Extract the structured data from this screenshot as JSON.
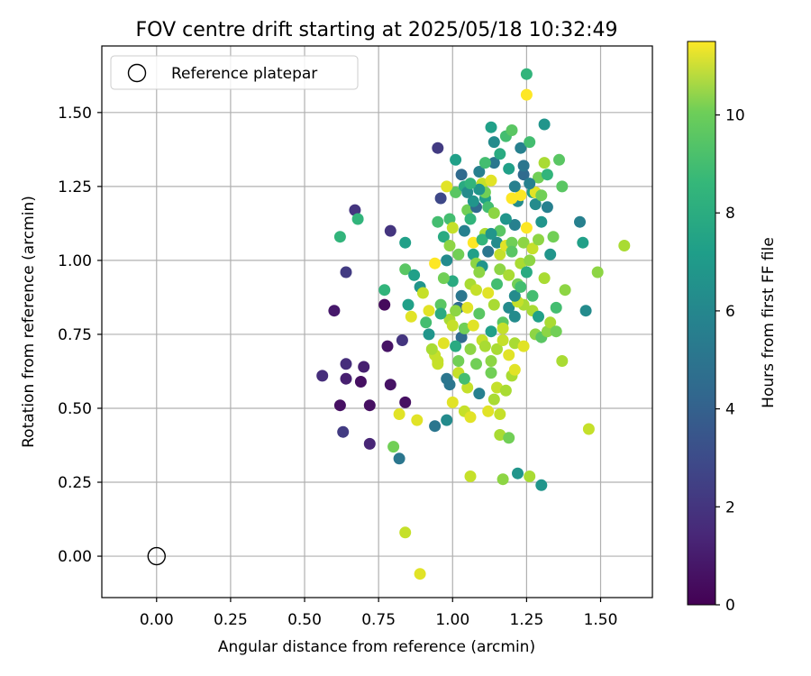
{
  "chart_data": {
    "type": "scatter",
    "title": "FOV centre drift starting at 2025/05/18 10:32:49",
    "xlabel": "Angular distance from reference (arcmin)",
    "ylabel": "Rotation from reference (arcmin)",
    "xlim": [
      -0.185,
      1.675
    ],
    "ylim": [
      -0.14,
      1.725
    ],
    "xticks": [
      0.0,
      0.25,
      0.5,
      0.75,
      1.0,
      1.25,
      1.5
    ],
    "xtick_labels": [
      "0.00",
      "0.25",
      "0.50",
      "0.75",
      "1.00",
      "1.25",
      "1.50"
    ],
    "yticks": [
      0.0,
      0.25,
      0.5,
      0.75,
      1.0,
      1.25,
      1.5
    ],
    "ytick_labels": [
      "0.00",
      "0.25",
      "0.50",
      "0.75",
      "1.00",
      "1.25",
      "1.50"
    ],
    "grid": true,
    "legend": {
      "placement": "top-left",
      "entries": [
        "Reference platepar"
      ]
    },
    "reference_point": {
      "x": 0.0,
      "y": 0.0,
      "label": "Reference platepar"
    },
    "colorbar": {
      "label": "Hours from first FF file",
      "colormap": "viridis",
      "range": [
        0,
        11.5
      ],
      "ticks": [
        0,
        2,
        4,
        6,
        8,
        10
      ],
      "tick_labels": [
        "0",
        "2",
        "4",
        "6",
        "8",
        "10"
      ]
    },
    "points": [
      [
        0.56,
        0.61,
        1.5
      ],
      [
        0.62,
        0.51,
        0.5
      ],
      [
        0.64,
        0.6,
        1.0
      ],
      [
        0.69,
        0.59,
        0.5
      ],
      [
        0.7,
        0.64,
        1.0
      ],
      [
        0.72,
        0.51,
        0.5
      ],
      [
        0.77,
        0.85,
        0.3
      ],
      [
        0.78,
        0.71,
        0.6
      ],
      [
        0.79,
        0.58,
        0.6
      ],
      [
        0.84,
        0.52,
        0.5
      ],
      [
        0.6,
        0.83,
        0.8
      ],
      [
        0.63,
        0.42,
        2.0
      ],
      [
        0.72,
        0.38,
        1.2
      ],
      [
        0.64,
        0.65,
        1.5
      ],
      [
        0.64,
        0.96,
        2.0
      ],
      [
        0.67,
        1.17,
        1.8
      ],
      [
        0.79,
        1.1,
        1.8
      ],
      [
        0.83,
        0.73,
        1.8
      ],
      [
        0.95,
        1.38,
        2.0
      ],
      [
        0.96,
        1.21,
        2.5
      ],
      [
        0.62,
        1.08,
        7.5
      ],
      [
        0.68,
        1.14,
        7.5
      ],
      [
        0.77,
        0.9,
        7.5
      ],
      [
        0.84,
        1.06,
        6.5
      ],
      [
        0.85,
        0.85,
        6.5
      ],
      [
        0.84,
        0.97,
        8.5
      ],
      [
        0.86,
        0.81,
        11.0
      ],
      [
        0.87,
        0.95,
        6.5
      ],
      [
        0.89,
        0.91,
        6.0
      ],
      [
        0.92,
        0.75,
        6.0
      ],
      [
        0.94,
        0.68,
        10.5
      ],
      [
        0.95,
        0.66,
        10.5
      ],
      [
        0.96,
        0.85,
        8.5
      ],
      [
        0.95,
        1.13,
        8.0
      ],
      [
        0.97,
        1.08,
        7.0
      ],
      [
        0.98,
        1.0,
        5.5
      ],
      [
        0.99,
        1.05,
        9.5
      ],
      [
        1.0,
        0.93,
        7.0
      ],
      [
        1.01,
        1.23,
        8.5
      ],
      [
        1.02,
        0.84,
        4.0
      ],
      [
        1.03,
        0.74,
        4.0
      ],
      [
        1.04,
        1.25,
        7.0
      ],
      [
        1.05,
        1.17,
        9.0
      ],
      [
        1.06,
        1.14,
        7.5
      ],
      [
        1.07,
        1.02,
        6.5
      ],
      [
        1.08,
        0.99,
        9.5
      ],
      [
        1.09,
        1.3,
        5.0
      ],
      [
        1.1,
        0.98,
        6.0
      ],
      [
        1.11,
        1.21,
        6.5
      ],
      [
        1.12,
        1.03,
        4.5
      ],
      [
        1.13,
        1.45,
        6.5
      ],
      [
        1.14,
        1.33,
        4.5
      ],
      [
        1.15,
        1.06,
        5.5
      ],
      [
        1.16,
        1.02,
        10.5
      ],
      [
        1.17,
        0.79,
        8.5
      ],
      [
        1.18,
        1.42,
        8.0
      ],
      [
        1.19,
        0.84,
        5.5
      ],
      [
        1.2,
        1.44,
        8.5
      ],
      [
        1.21,
        1.12,
        5.0
      ],
      [
        1.22,
        1.2,
        5.5
      ],
      [
        1.23,
        1.38,
        5.0
      ],
      [
        1.24,
        1.29,
        4.0
      ],
      [
        1.25,
        1.63,
        7.5
      ],
      [
        1.25,
        1.56,
        11.5
      ],
      [
        1.26,
        1.4,
        8.0
      ],
      [
        1.27,
        1.23,
        6.5
      ],
      [
        1.28,
        1.19,
        5.5
      ],
      [
        1.29,
        1.28,
        9.0
      ],
      [
        1.3,
        1.13,
        6.0
      ],
      [
        1.31,
        1.46,
        6.0
      ],
      [
        1.32,
        1.18,
        5.0
      ],
      [
        1.33,
        1.02,
        6.0
      ],
      [
        1.34,
        1.08,
        9.0
      ],
      [
        1.35,
        0.84,
        8.0
      ],
      [
        1.36,
        1.34,
        8.5
      ],
      [
        1.37,
        1.25,
        8.5
      ],
      [
        1.38,
        0.9,
        9.5
      ],
      [
        1.37,
        0.66,
        10.0
      ],
      [
        1.43,
        1.13,
        5.0
      ],
      [
        1.44,
        1.06,
        6.5
      ],
      [
        1.45,
        0.83,
        5.5
      ],
      [
        1.46,
        0.43,
        10.5
      ],
      [
        1.49,
        0.96,
        9.5
      ],
      [
        1.58,
        1.05,
        10.0
      ],
      [
        0.82,
        0.33,
        4.5
      ],
      [
        0.82,
        0.48,
        11.0
      ],
      [
        0.88,
        0.46,
        11.0
      ],
      [
        0.84,
        0.08,
        10.5
      ],
      [
        0.89,
        -0.06,
        11.0
      ],
      [
        0.8,
        0.37,
        9.0
      ],
      [
        0.94,
        0.44,
        4.5
      ],
      [
        0.98,
        0.46,
        5.5
      ],
      [
        0.98,
        0.6,
        4.5
      ],
      [
        1.0,
        0.52,
        11.0
      ],
      [
        1.02,
        0.62,
        10.5
      ],
      [
        1.04,
        0.49,
        10.5
      ],
      [
        1.05,
        0.57,
        10.5
      ],
      [
        1.06,
        0.47,
        11.0
      ],
      [
        1.06,
        0.27,
        10.5
      ],
      [
        1.08,
        0.65,
        9.0
      ],
      [
        1.09,
        0.55,
        5.0
      ],
      [
        1.12,
        0.49,
        11.0
      ],
      [
        1.13,
        0.62,
        9.0
      ],
      [
        1.14,
        0.53,
        10.0
      ],
      [
        1.15,
        0.57,
        10.5
      ],
      [
        1.16,
        0.48,
        10.5
      ],
      [
        1.16,
        0.41,
        10.0
      ],
      [
        1.17,
        0.26,
        9.5
      ],
      [
        1.18,
        0.56,
        10.0
      ],
      [
        1.19,
        0.4,
        9.0
      ],
      [
        1.2,
        0.61,
        10.0
      ],
      [
        1.21,
        0.63,
        11.0
      ],
      [
        1.21,
        0.72,
        10.0
      ],
      [
        1.22,
        0.28,
        6.0
      ],
      [
        1.24,
        0.71,
        11.0
      ],
      [
        1.26,
        0.27,
        10.0
      ],
      [
        1.3,
        0.24,
        6.0
      ],
      [
        1.24,
        0.85,
        10.0
      ],
      [
        1.27,
        0.88,
        8.0
      ],
      [
        1.28,
        0.75,
        9.5
      ],
      [
        1.3,
        0.74,
        8.5
      ],
      [
        1.32,
        0.76,
        9.5
      ],
      [
        1.33,
        0.79,
        10.0
      ],
      [
        1.35,
        0.76,
        9.0
      ],
      [
        1.31,
        0.94,
        10.0
      ],
      [
        0.9,
        0.89,
        10.5
      ],
      [
        0.92,
        0.83,
        11.0
      ],
      [
        0.94,
        0.99,
        11.5
      ],
      [
        0.97,
        0.72,
        11.0
      ],
      [
        0.99,
        0.8,
        10.0
      ],
      [
        1.0,
        0.78,
        10.5
      ],
      [
        1.01,
        0.83,
        9.5
      ],
      [
        1.03,
        0.88,
        4.5
      ],
      [
        1.04,
        0.77,
        9.0
      ],
      [
        1.05,
        0.84,
        11.0
      ],
      [
        1.06,
        0.92,
        10.0
      ],
      [
        1.07,
        1.06,
        11.5
      ],
      [
        1.08,
        0.9,
        10.5
      ],
      [
        1.09,
        0.96,
        9.5
      ],
      [
        1.1,
        0.73,
        10.5
      ],
      [
        1.11,
        1.09,
        10.0
      ],
      [
        1.12,
        0.89,
        11.0
      ],
      [
        1.13,
        0.76,
        6.5
      ],
      [
        1.14,
        0.85,
        10.0
      ],
      [
        1.15,
        0.92,
        8.0
      ],
      [
        1.16,
        0.97,
        9.5
      ],
      [
        1.17,
        0.77,
        10.5
      ],
      [
        1.18,
        1.05,
        11.0
      ],
      [
        1.19,
        0.95,
        10.0
      ],
      [
        1.2,
        1.06,
        9.0
      ],
      [
        1.21,
        0.81,
        5.5
      ],
      [
        1.22,
        0.86,
        10.5
      ],
      [
        1.23,
        0.99,
        10.0
      ],
      [
        1.24,
        1.06,
        9.5
      ],
      [
        1.25,
        1.11,
        11.5
      ],
      [
        1.26,
        1.0,
        9.5
      ],
      [
        1.27,
        1.04,
        10.5
      ],
      [
        1.28,
        1.23,
        11.0
      ],
      [
        1.2,
        1.21,
        11.5
      ],
      [
        1.23,
        1.22,
        11.5
      ],
      [
        1.1,
        1.26,
        10.5
      ],
      [
        1.11,
        1.23,
        9.0
      ],
      [
        1.13,
        1.27,
        11.0
      ],
      [
        0.98,
        1.25,
        11.0
      ],
      [
        0.99,
        1.14,
        8.0
      ],
      [
        1.0,
        1.11,
        10.5
      ],
      [
        1.02,
        1.02,
        9.0
      ],
      [
        1.04,
        1.1,
        5.0
      ],
      [
        1.08,
        1.18,
        4.0
      ],
      [
        1.1,
        1.07,
        7.5
      ],
      [
        1.12,
        1.18,
        8.0
      ],
      [
        1.14,
        1.16,
        9.5
      ],
      [
        1.16,
        1.1,
        8.5
      ],
      [
        1.18,
        1.14,
        6.0
      ],
      [
        1.2,
        1.03,
        8.5
      ],
      [
        1.22,
        0.92,
        9.0
      ],
      [
        1.24,
        1.32,
        4.5
      ],
      [
        1.26,
        1.26,
        5.0
      ],
      [
        1.29,
        1.07,
        9.5
      ],
      [
        1.3,
        1.22,
        9.0
      ],
      [
        1.31,
        1.33,
        10.0
      ],
      [
        1.32,
        1.29,
        7.5
      ],
      [
        0.91,
        0.79,
        8.0
      ],
      [
        0.93,
        0.7,
        10.0
      ],
      [
        0.95,
        0.65,
        10.5
      ],
      [
        0.96,
        0.82,
        7.0
      ],
      [
        0.97,
        0.94,
        9.0
      ],
      [
        0.99,
        0.58,
        4.5
      ],
      [
        1.01,
        0.71,
        7.0
      ],
      [
        1.02,
        0.66,
        9.0
      ],
      [
        1.04,
        0.6,
        8.0
      ],
      [
        1.06,
        0.7,
        9.5
      ],
      [
        1.07,
        0.78,
        11.0
      ],
      [
        1.09,
        0.82,
        8.5
      ],
      [
        1.11,
        0.71,
        10.0
      ],
      [
        1.13,
        0.66,
        9.5
      ],
      [
        1.15,
        0.7,
        10.0
      ],
      [
        1.17,
        0.73,
        10.5
      ],
      [
        1.19,
        0.68,
        11.0
      ],
      [
        1.21,
        0.88,
        5.5
      ],
      [
        1.23,
        0.91,
        8.0
      ],
      [
        1.25,
        0.96,
        7.0
      ],
      [
        1.27,
        0.83,
        10.0
      ],
      [
        1.29,
        0.81,
        6.5
      ],
      [
        1.11,
        1.33,
        8.0
      ],
      [
        1.07,
        1.2,
        6.0
      ],
      [
        1.05,
        1.23,
        5.5
      ],
      [
        1.09,
        1.24,
        6.0
      ],
      [
        1.14,
        1.4,
        5.5
      ],
      [
        1.16,
        1.36,
        7.0
      ],
      [
        1.19,
        1.31,
        6.5
      ],
      [
        1.21,
        1.25,
        5.0
      ],
      [
        1.03,
        1.29,
        4.0
      ],
      [
        1.01,
        1.34,
        6.5
      ],
      [
        1.06,
        1.26,
        7.5
      ],
      [
        1.13,
        1.09,
        6.0
      ]
    ]
  }
}
